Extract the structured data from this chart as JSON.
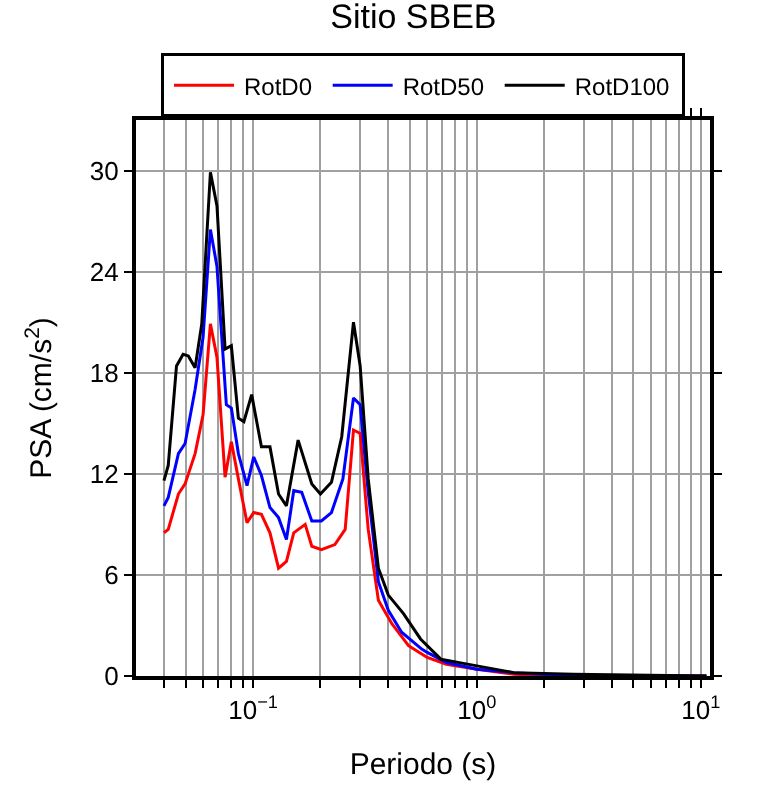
{
  "chart_data": {
    "type": "line",
    "title": "Sitio SBEB",
    "xlabel": "Periodo (s)",
    "ylabel": "PSA (cm/s$^{2}$)",
    "log": "x",
    "grid": true,
    "legend": "top",
    "line_style": "solid",
    "marker": "none",
    "xlim": [
      0.03,
      11
    ],
    "ylim": [
      0,
      33
    ],
    "xticks": [
      {
        "value": 0.04,
        "label": null
      },
      {
        "value": 0.05,
        "label": null
      },
      {
        "value": 0.06,
        "label": null
      },
      {
        "value": 0.07,
        "label": null
      },
      {
        "value": 0.08,
        "label": null
      },
      {
        "value": 0.09,
        "label": null
      },
      {
        "value": 0.1,
        "label": "10$^{−1}$"
      },
      {
        "value": 0.2,
        "label": null
      },
      {
        "value": 0.3,
        "label": null
      },
      {
        "value": 0.4,
        "label": null
      },
      {
        "value": 0.5,
        "label": null
      },
      {
        "value": 0.6,
        "label": null
      },
      {
        "value": 0.7,
        "label": null
      },
      {
        "value": 0.8,
        "label": null
      },
      {
        "value": 0.9,
        "label": null
      },
      {
        "value": 1,
        "label": "10$^{0}$"
      },
      {
        "value": 2,
        "label": null
      },
      {
        "value": 3,
        "label": null
      },
      {
        "value": 4,
        "label": null
      },
      {
        "value": 5,
        "label": null
      },
      {
        "value": 6,
        "label": null
      },
      {
        "value": 7,
        "label": null
      },
      {
        "value": 8,
        "label": null
      },
      {
        "value": 9,
        "label": null
      },
      {
        "value": 10,
        "label": "10$^{1}$"
      }
    ],
    "yticks": [
      0,
      6,
      12,
      18,
      24,
      30
    ],
    "series": [
      {
        "name": "RotD0",
        "color": "#ff0000",
        "x": [
          0.04,
          0.0418,
          0.0464,
          0.0497,
          0.0551,
          0.0598,
          0.0645,
          0.069,
          0.075,
          0.08,
          0.086,
          0.094,
          0.1007,
          0.109,
          0.119,
          0.13,
          0.141,
          0.152,
          0.171,
          0.183,
          0.202,
          0.232,
          0.258,
          0.281,
          0.301,
          0.327,
          0.363,
          0.417,
          0.495,
          0.567,
          0.6,
          0.73,
          1.0,
          1.46,
          2.7,
          10.6
        ],
        "values": [
          8.5,
          8.7,
          10.8,
          11.4,
          13.2,
          15.5,
          20.9,
          18.9,
          11.8,
          13.9,
          11.7,
          9.1,
          9.7,
          9.6,
          8.5,
          6.4,
          6.8,
          8.5,
          9.0,
          7.7,
          7.5,
          7.8,
          8.7,
          14.6,
          14.4,
          8.7,
          4.5,
          3.1,
          1.8,
          1.3,
          1.1,
          0.7,
          0.4,
          0.1,
          0,
          0
        ]
      },
      {
        "name": "RotD50",
        "color": "#0000ff",
        "x": [
          0.04,
          0.0418,
          0.0464,
          0.0497,
          0.0551,
          0.0598,
          0.0645,
          0.069,
          0.076,
          0.08,
          0.086,
          0.094,
          0.1007,
          0.109,
          0.119,
          0.13,
          0.141,
          0.152,
          0.165,
          0.183,
          0.202,
          0.224,
          0.252,
          0.281,
          0.301,
          0.327,
          0.363,
          0.402,
          0.461,
          0.567,
          0.6,
          0.73,
          1.0,
          1.46,
          2.7,
          10.6
        ],
        "values": [
          10.1,
          10.6,
          13.2,
          13.8,
          17.0,
          20.1,
          26.5,
          24.3,
          16.1,
          15.9,
          13.2,
          11.3,
          13.0,
          11.9,
          10.0,
          9.4,
          8.1,
          11.0,
          10.9,
          9.2,
          9.2,
          9.7,
          11.7,
          16.5,
          16.1,
          10.9,
          5.6,
          3.9,
          2.6,
          1.6,
          1.4,
          0.8,
          0.4,
          0.2,
          0,
          0
        ]
      },
      {
        "name": "RotD100",
        "color": "#000000",
        "x": [
          0.04,
          0.0418,
          0.0455,
          0.0487,
          0.0514,
          0.0551,
          0.059,
          0.0645,
          0.069,
          0.075,
          0.08,
          0.086,
          0.091,
          0.0986,
          0.109,
          0.119,
          0.13,
          0.141,
          0.159,
          0.183,
          0.2,
          0.224,
          0.249,
          0.281,
          0.301,
          0.327,
          0.363,
          0.402,
          0.47,
          0.56,
          0.69,
          1.0,
          1.46,
          2.7,
          10.6
        ],
        "values": [
          11.6,
          12.5,
          18.4,
          19.1,
          19.0,
          18.3,
          20.9,
          29.9,
          27.9,
          19.4,
          19.6,
          15.3,
          15.1,
          16.7,
          13.6,
          13.6,
          10.8,
          10.1,
          14.0,
          11.4,
          10.8,
          11.5,
          14.2,
          21.0,
          18.4,
          11.7,
          6.4,
          4.8,
          3.7,
          2.2,
          1.0,
          0.6,
          0.2,
          0.1,
          0
        ]
      }
    ]
  }
}
